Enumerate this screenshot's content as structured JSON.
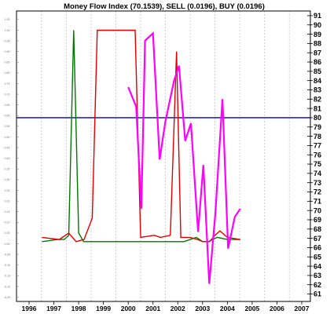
{
  "chart_data": {
    "type": "line",
    "title": "Money Flow Index (70.1539), SELL (0.0196), BUY (0.0196)",
    "x_ticks": [
      "1996",
      "1997",
      "1998",
      "1999",
      "2000",
      "2001",
      "2002",
      "2003",
      "2004",
      "2005",
      "2006",
      "2007"
    ],
    "xlim": [
      1996,
      2007
    ],
    "right_axis": {
      "ylim": [
        60.2,
        91.5
      ],
      "ticks": [
        "91",
        "90",
        "89",
        "88",
        "87",
        "86",
        "85",
        "84",
        "83",
        "82",
        "81",
        "80",
        "79",
        "78",
        "77",
        "76",
        "75",
        "74",
        "73",
        "72",
        "71",
        "70",
        "69",
        "68",
        "67",
        "66",
        "65",
        "64",
        "63",
        "62",
        "61"
      ]
    },
    "left_axis": {
      "ylim": [
        -0.27,
        1.09
      ],
      "ticks": [
        "1.05",
        "1.00",
        "0.95",
        "0.90",
        "0.85",
        "0.80",
        "0.75",
        "0.70",
        "0.65",
        "0.60",
        "0.55",
        "0.50",
        "0.45",
        "0.40",
        "0.35",
        "0.30",
        "0.25",
        "0.20",
        "0.15",
        "0.10",
        "0.05",
        "0.00",
        "-0.05",
        "-0.10",
        "-0.15",
        "-0.20",
        "-0.25"
      ]
    },
    "reference_line": {
      "axis": "right",
      "value": 80.0,
      "color": "#0000c8"
    },
    "grid": {
      "vertical_dotted": true
    },
    "series": [
      {
        "name": "Money Flow Index",
        "axis": "right",
        "color": "#ff00ff",
        "points": [
          [
            2000.0,
            83.3
          ],
          [
            2000.32,
            81.2
          ],
          [
            2000.53,
            70.2
          ],
          [
            2000.68,
            88.3
          ],
          [
            2001.0,
            89.1
          ],
          [
            2001.27,
            75.5
          ],
          [
            2001.5,
            79.6
          ],
          [
            2001.85,
            84.0
          ],
          [
            2002.05,
            85.6
          ],
          [
            2002.3,
            77.5
          ],
          [
            2002.53,
            79.4
          ],
          [
            2002.82,
            67.7
          ],
          [
            2003.03,
            74.9
          ],
          [
            2003.27,
            62.1
          ],
          [
            2003.52,
            69.8
          ],
          [
            2003.8,
            82.0
          ],
          [
            2004.03,
            65.9
          ],
          [
            2004.3,
            69.3
          ],
          [
            2004.52,
            70.2
          ]
        ]
      },
      {
        "name": "SELL",
        "axis": "left",
        "color": "#e00000",
        "points": [
          [
            1996.52,
            0.03
          ],
          [
            1997.22,
            0.02
          ],
          [
            1997.6,
            0.05
          ],
          [
            1997.9,
            0.01
          ],
          [
            1998.22,
            0.02
          ],
          [
            1998.55,
            0.12
          ],
          [
            1998.75,
            1.0
          ],
          [
            2000.02,
            1.0
          ],
          [
            2000.12,
            1.0
          ],
          [
            2000.28,
            1.0
          ],
          [
            2000.5,
            0.03
          ],
          [
            2001.05,
            0.04
          ],
          [
            2001.3,
            0.03
          ],
          [
            2001.7,
            0.04
          ],
          [
            2001.95,
            0.9
          ],
          [
            2002.12,
            0.03
          ],
          [
            2002.5,
            0.03
          ],
          [
            2002.8,
            0.02
          ],
          [
            2003.0,
            0.01
          ],
          [
            2003.28,
            0.01
          ],
          [
            2003.5,
            0.04
          ],
          [
            2003.7,
            0.06
          ],
          [
            2004.0,
            0.03
          ],
          [
            2004.52,
            0.02
          ]
        ]
      },
      {
        "name": "BUY",
        "axis": "left",
        "color": "#007800",
        "points": [
          [
            1996.52,
            0.01
          ],
          [
            1997.15,
            0.02
          ],
          [
            1997.42,
            0.02
          ],
          [
            1997.6,
            0.04
          ],
          [
            1997.8,
            1.0
          ],
          [
            1998.0,
            0.05
          ],
          [
            1998.2,
            0.01
          ],
          [
            1998.5,
            0.01
          ],
          [
            2001.0,
            0.01
          ],
          [
            2002.25,
            0.01
          ],
          [
            2002.75,
            0.03
          ],
          [
            2003.0,
            0.01
          ],
          [
            2003.25,
            0.01
          ],
          [
            2003.4,
            0.02
          ],
          [
            2003.6,
            0.03
          ],
          [
            2004.0,
            0.02
          ],
          [
            2004.52,
            0.02
          ]
        ]
      }
    ]
  }
}
